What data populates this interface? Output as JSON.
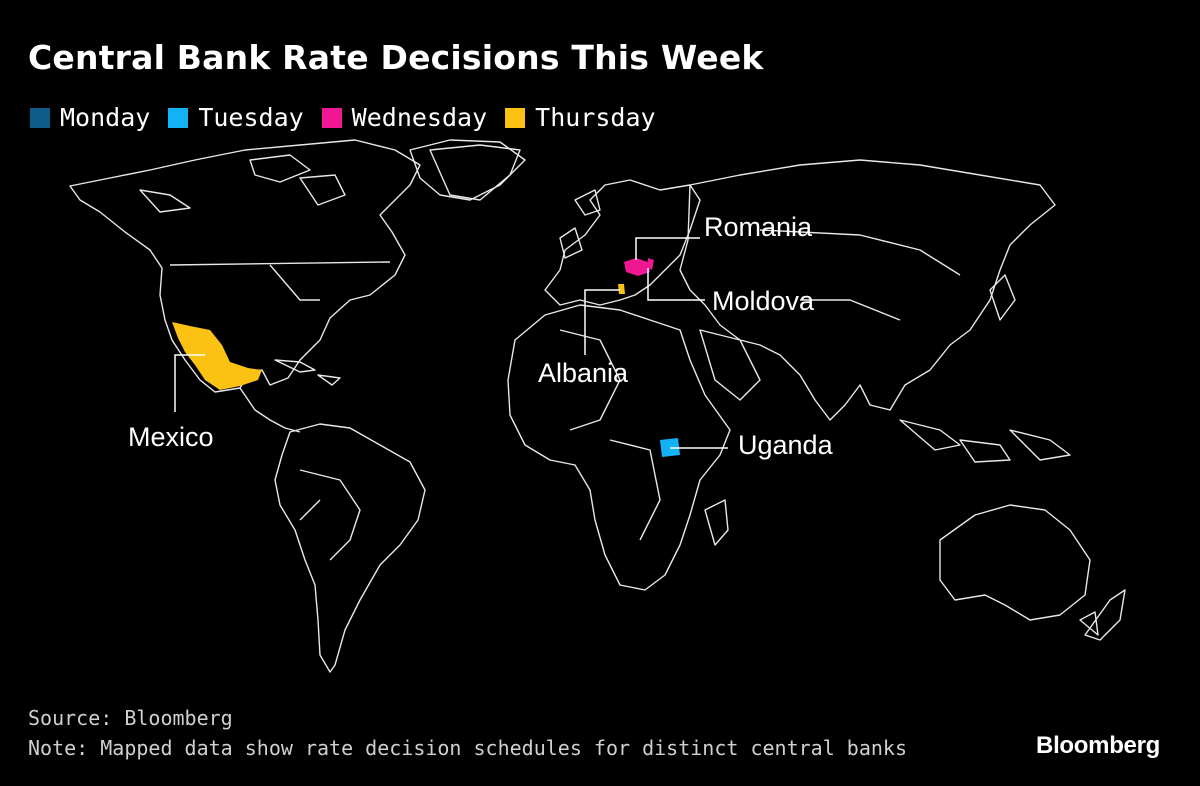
{
  "title": "Central Bank Rate Decisions This Week",
  "legend": [
    {
      "label": "Monday",
      "color": "#0d5c8a"
    },
    {
      "label": "Tuesday",
      "color": "#13b2f5"
    },
    {
      "label": "Wednesday",
      "color": "#f01793"
    },
    {
      "label": "Thursday",
      "color": "#fbc214"
    }
  ],
  "countries": [
    {
      "name": "Mexico",
      "day": "Thursday",
      "color": "#fbc214"
    },
    {
      "name": "Albania",
      "day": "Thursday",
      "color": "#fbc214"
    },
    {
      "name": "Romania",
      "day": "Wednesday",
      "color": "#f01793"
    },
    {
      "name": "Moldova",
      "day": "Wednesday",
      "color": "#f01793"
    },
    {
      "name": "Uganda",
      "day": "Tuesday",
      "color": "#13b2f5"
    }
  ],
  "footer": {
    "source": "Source: Bloomberg",
    "note": "Note: Mapped data show rate decision schedules for distinct central banks"
  },
  "brand": "Bloomberg"
}
